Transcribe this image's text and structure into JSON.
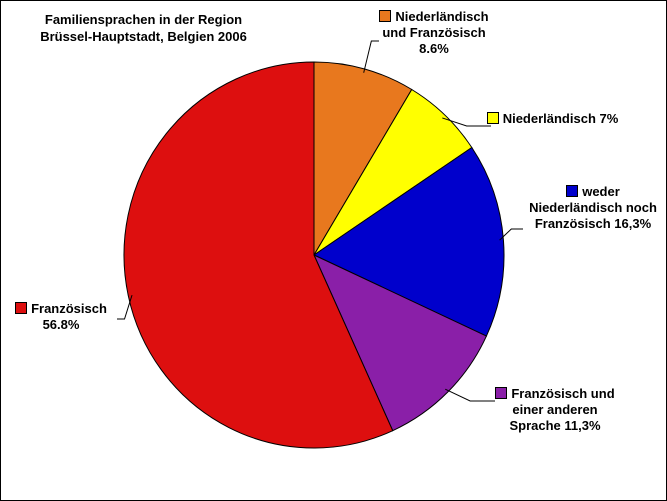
{
  "chart_data": {
    "type": "pie",
    "title": "Familiensprachen in der Region Brüssel-Hauptstadt, Belgien 2006",
    "categories": [
      "Niederländisch und Französisch",
      "Niederländisch",
      "weder Niederländisch noch Französisch",
      "Französisch und einer anderen Sprache",
      "Französisch"
    ],
    "values": [
      8.6,
      7,
      16.3,
      11.3,
      56.8
    ],
    "value_labels": [
      "8.6%",
      "7%",
      "16,3%",
      "11,3%",
      "56.8%"
    ],
    "colors": [
      "#e8781e",
      "#ffff00",
      "#0000cc",
      "#8a1fa8",
      "#dd0f0f"
    ]
  }
}
